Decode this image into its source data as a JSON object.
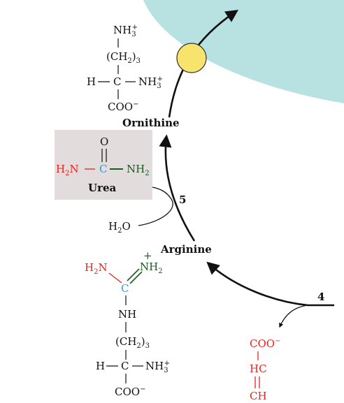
{
  "colors": {
    "membrane": "#b7e2e1",
    "transporter": "#f8e36c",
    "urea_box": "#e3dcdc",
    "red": "#e8231f",
    "green": "#1d5a1f",
    "blue": "#2f9ad7",
    "black": "#111111"
  },
  "ornithine": {
    "top_group": "NH",
    "top_sub": "3",
    "top_sup": "+",
    "chain": "(CH",
    "chain_sub": "2",
    "chain_close": ")",
    "chain_sub2": "3",
    "h": "H",
    "c": "C",
    "right_group": "NH",
    "right_sub": "3",
    "right_sup": "+",
    "coo": "COO",
    "coo_sup": "−",
    "name": "Ornithine"
  },
  "urea": {
    "o": "O",
    "left": "H",
    "left_sub": "2",
    "left_n": "N",
    "c": "C",
    "right": "NH",
    "right_sub": "2",
    "name": "Urea"
  },
  "water": {
    "h": "H",
    "sub": "2",
    "o": "O"
  },
  "steps": {
    "five": "5",
    "four": "4"
  },
  "arginine": {
    "name": "Arginine",
    "left": "H",
    "left_sub": "2",
    "left_n": "N",
    "plus": "+",
    "right": "NH",
    "right_sub": "2",
    "c": "C",
    "nh": "NH",
    "chain": "(CH",
    "chain_sub": "2",
    "chain_close": ")",
    "chain_sub2": "3",
    "h": "H",
    "alpha": "C",
    "amino": "NH",
    "amino_sub": "3",
    "amino_sup": "+",
    "coo": "COO",
    "coo_sup": "−"
  },
  "fumarate": {
    "coo": "COO",
    "coo_sup": "−",
    "hc": "HC",
    "ch": "CH"
  }
}
